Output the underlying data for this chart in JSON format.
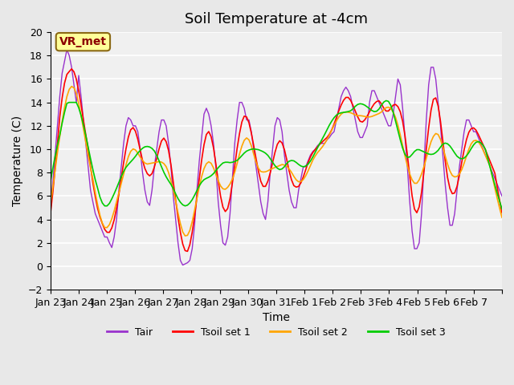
{
  "title": "Soil Temperature at -4cm",
  "xlabel": "Time",
  "ylabel": "Temperature (C)",
  "ylim": [
    -2,
    20
  ],
  "yticks": [
    -2,
    0,
    2,
    4,
    6,
    8,
    10,
    12,
    14,
    16,
    18,
    20
  ],
  "xtick_labels": [
    "Jan 23",
    "Jan 24",
    "Jan 25",
    "Jan 26",
    "Jan 27",
    "Jan 28",
    "Jan 29",
    "Jan 30",
    "Jan 31",
    "Feb 1",
    "Feb 2",
    "Feb 3",
    "Feb 4",
    "Feb 5",
    "Feb 6",
    "Feb 7",
    ""
  ],
  "annotation_text": "VR_met",
  "annotation_color": "#8B0000",
  "annotation_bg": "#FFFF99",
  "line_colors": {
    "Tair": "#9932CC",
    "Tsoil set 1": "#FF0000",
    "Tsoil set 2": "#FFA500",
    "Tsoil set 3": "#00CC00"
  },
  "bg_color": "#E8E8E8",
  "plot_bg": "#F0F0F0",
  "grid_color": "#FFFFFF",
  "title_fontsize": 13,
  "axis_fontsize": 10,
  "tick_fontsize": 9,
  "legend_fontsize": 9
}
